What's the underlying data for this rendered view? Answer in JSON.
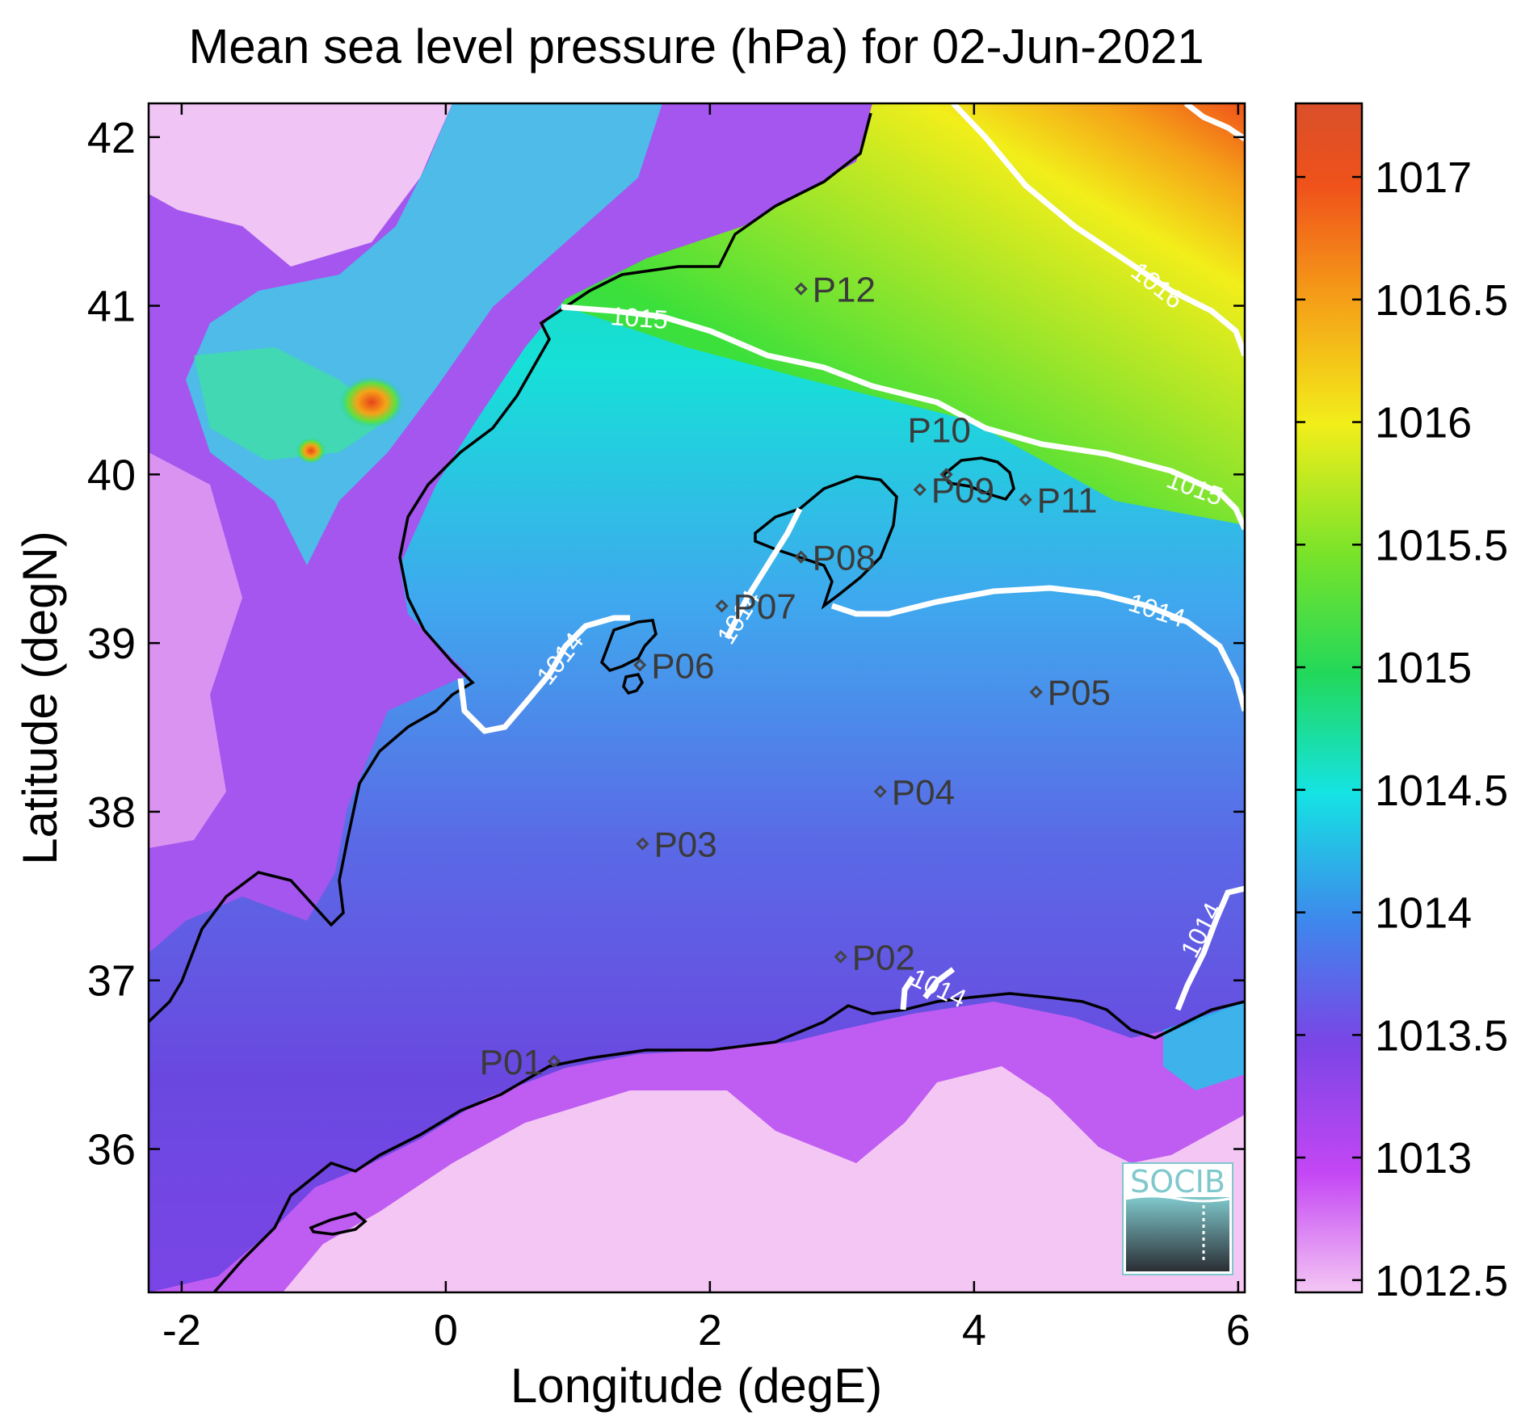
{
  "title": "Mean sea level pressure (hPa) for 02-Jun-2021",
  "x_axis": {
    "label": "Longitude (degE)",
    "range": [
      -2.25,
      6.05
    ],
    "ticks": [
      -2,
      0,
      2,
      4,
      6
    ],
    "tick_labels": [
      "-2",
      "0",
      "2",
      "4",
      "6"
    ]
  },
  "y_axis": {
    "label": "Latitude (degN)",
    "range": [
      35.15,
      42.2
    ],
    "ticks": [
      36,
      37,
      38,
      39,
      40,
      41,
      42
    ],
    "tick_labels": [
      "36",
      "37",
      "38",
      "39",
      "40",
      "41",
      "42"
    ]
  },
  "colorbar": {
    "range": [
      1012.45,
      1017.3
    ],
    "ticks": [
      1012.5,
      1013,
      1013.5,
      1014,
      1014.5,
      1015,
      1015.5,
      1016,
      1016.5,
      1017
    ],
    "tick_labels": [
      "1012.5",
      "1013",
      "1013.5",
      "1014",
      "1014.5",
      "1015",
      "1015.5",
      "1016",
      "1016.5",
      "1017"
    ],
    "colors": [
      "#f4c6f4",
      "#c447f4",
      "#7a45e6",
      "#3f86ec",
      "#15e3e3",
      "#22d85a",
      "#78e32a",
      "#f2ee1a",
      "#f5a318",
      "#f0521a",
      "#d94f2a"
    ]
  },
  "stations": [
    {
      "label": "P01",
      "lon": 0.82,
      "lat": 36.52
    },
    {
      "label": "P02",
      "lon": 2.99,
      "lat": 37.14
    },
    {
      "label": "P03",
      "lon": 1.49,
      "lat": 37.81
    },
    {
      "label": "P04",
      "lon": 3.29,
      "lat": 38.12
    },
    {
      "label": "P05",
      "lon": 4.47,
      "lat": 38.71
    },
    {
      "label": "P06",
      "lon": 1.47,
      "lat": 38.87
    },
    {
      "label": "P07",
      "lon": 2.09,
      "lat": 39.22
    },
    {
      "label": "P08",
      "lon": 2.69,
      "lat": 39.51
    },
    {
      "label": "P09",
      "lon": 3.59,
      "lat": 39.91
    },
    {
      "label": "P10",
      "lon": 3.79,
      "lat": 40.0
    },
    {
      "label": "P11",
      "lon": 4.39,
      "lat": 39.85
    },
    {
      "label": "P12",
      "lon": 2.69,
      "lat": 41.1
    }
  ],
  "contour_labels": [
    "1014",
    "1014",
    "1014",
    "1014",
    "1014",
    "1015",
    "1015",
    "1016"
  ],
  "logo": {
    "text": "SOCIB"
  }
}
